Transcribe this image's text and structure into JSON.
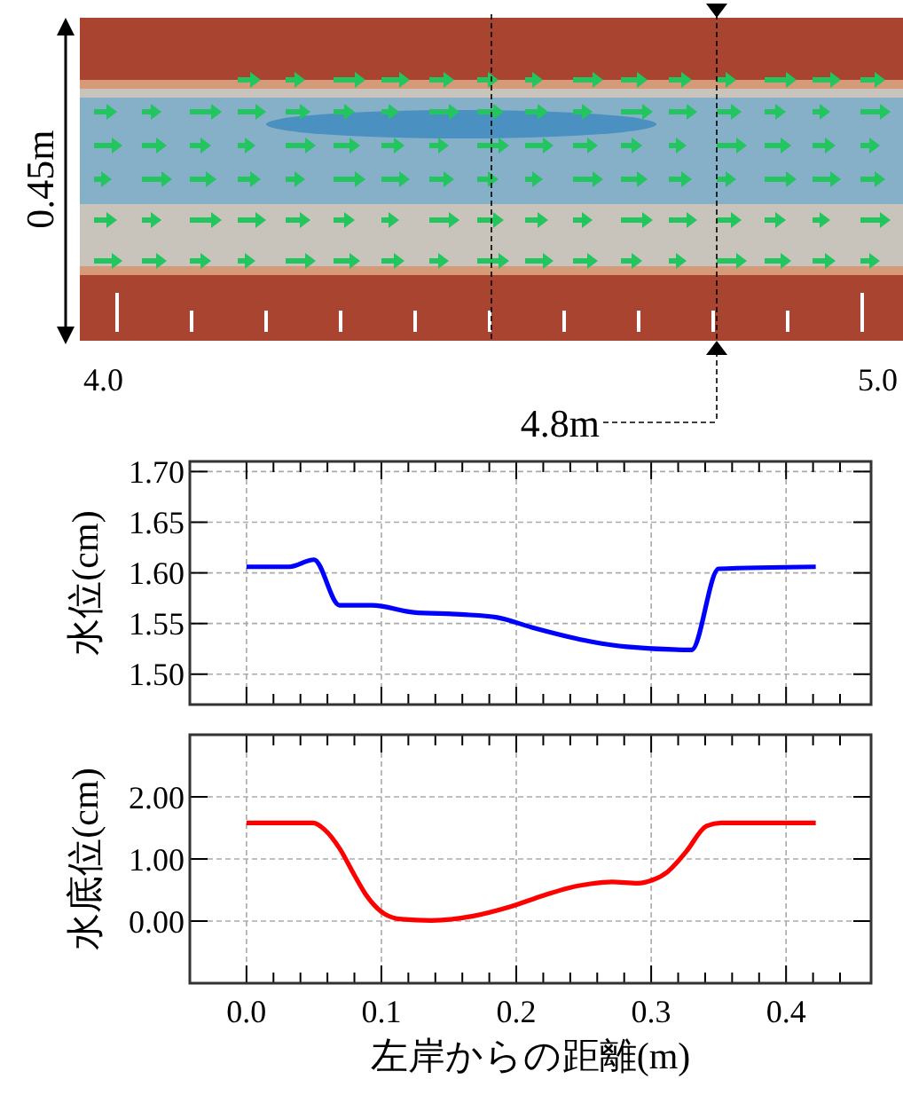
{
  "chart_data": [
    {
      "type": "other",
      "annotations": [
        "0.45m",
        "4.0",
        "5.0",
        "4.8m"
      ]
    },
    {
      "type": "line",
      "ylabel": "水位(cm)",
      "xlim": [
        -0.042,
        0.463
      ],
      "ylim": [
        1.47,
        1.71
      ],
      "xticks": [
        0,
        {
          "value": 0.02,
          "label": null
        },
        {
          "value": 0.04,
          "label": null
        },
        {
          "value": 0.06,
          "label": null
        },
        {
          "value": 0.08,
          "label": null
        },
        0.1,
        {
          "value": 0.12,
          "label": null
        },
        {
          "value": 0.14,
          "label": null
        },
        {
          "value": 0.16,
          "label": null
        },
        {
          "value": 0.18,
          "label": null
        },
        0.2,
        {
          "value": 0.22,
          "label": null
        },
        {
          "value": 0.24,
          "label": null
        },
        {
          "value": 0.26,
          "label": null
        },
        {
          "value": 0.28,
          "label": null
        },
        0.3,
        {
          "value": 0.32,
          "label": null
        },
        {
          "value": 0.34,
          "label": null
        },
        {
          "value": 0.36,
          "label": null
        },
        {
          "value": 0.38,
          "label": null
        },
        0.4,
        {
          "value": 0.42,
          "label": null
        },
        {
          "value": 0.44,
          "label": null
        }
      ],
      "yticks": [
        {
          "value": 1.5,
          "label": "1.50"
        },
        {
          "value": 1.55,
          "label": "1.55"
        },
        {
          "value": 1.6,
          "label": "1.60"
        },
        {
          "value": 1.65,
          "label": "1.65"
        },
        {
          "value": 1.7,
          "label": "1.70"
        }
      ],
      "grid": true,
      "tick_labels": "y",
      "line_style": "solid",
      "marker": "none",
      "series": [
        {
          "color": "#0000ff",
          "x": [
            0,
            0.032,
            0.05,
            0.069,
            0.093,
            0.124,
            0.159,
            0.186,
            0.212,
            0.256,
            0.282,
            0.33,
            0.35,
            0.422
          ],
          "values": [
            1.606,
            1.606,
            1.613,
            1.568,
            1.568,
            1.561,
            1.559,
            1.556,
            1.546,
            1.532,
            1.527,
            1.524,
            1.604,
            1.606
          ]
        }
      ]
    },
    {
      "type": "line",
      "xlabel": "左岸からの距離(m)",
      "ylabel": "水底位(cm)",
      "xlim": [
        -0.042,
        0.463
      ],
      "ylim": [
        -1,
        3
      ],
      "xticks": [
        {
          "value": 0,
          "label": "0.0"
        },
        {
          "value": 0.02,
          "label": null
        },
        {
          "value": 0.04,
          "label": null
        },
        {
          "value": 0.06,
          "label": null
        },
        {
          "value": 0.08,
          "label": null
        },
        {
          "value": 0.1,
          "label": "0.1"
        },
        {
          "value": 0.12,
          "label": null
        },
        {
          "value": 0.14,
          "label": null
        },
        {
          "value": 0.16,
          "label": null
        },
        {
          "value": 0.18,
          "label": null
        },
        {
          "value": 0.2,
          "label": "0.2"
        },
        {
          "value": 0.22,
          "label": null
        },
        {
          "value": 0.24,
          "label": null
        },
        {
          "value": 0.26,
          "label": null
        },
        {
          "value": 0.28,
          "label": null
        },
        {
          "value": 0.3,
          "label": "0.3"
        },
        {
          "value": 0.32,
          "label": null
        },
        {
          "value": 0.34,
          "label": null
        },
        {
          "value": 0.36,
          "label": null
        },
        {
          "value": 0.38,
          "label": null
        },
        {
          "value": 0.4,
          "label": "0.4"
        },
        {
          "value": 0.42,
          "label": null
        },
        {
          "value": 0.44,
          "label": null
        }
      ],
      "yticks": [
        {
          "value": 0,
          "label": "0.00"
        },
        {
          "value": 1,
          "label": "1.00"
        },
        {
          "value": 2,
          "label": "2.00"
        }
      ],
      "grid": true,
      "line_style": "solid",
      "marker": "none",
      "series": [
        {
          "color": "#ff0000",
          "x": [
            0,
            0.0495,
            0.058,
            0.069,
            0.08,
            0.089,
            0.102,
            0.115,
            0.137,
            0.168,
            0.194,
            0.22,
            0.238,
            0.255,
            0.271,
            0.29,
            0.301,
            0.312,
            0.326,
            0.341,
            0.352,
            0.422
          ],
          "values": [
            1.58,
            1.58,
            1.47,
            1.17,
            0.74,
            0.41,
            0.12,
            0.03,
            0.01,
            0.08,
            0.22,
            0.41,
            0.53,
            0.6,
            0.63,
            0.61,
            0.66,
            0.79,
            1.12,
            1.53,
            1.58,
            1.58
          ]
        }
      ]
    }
  ]
}
